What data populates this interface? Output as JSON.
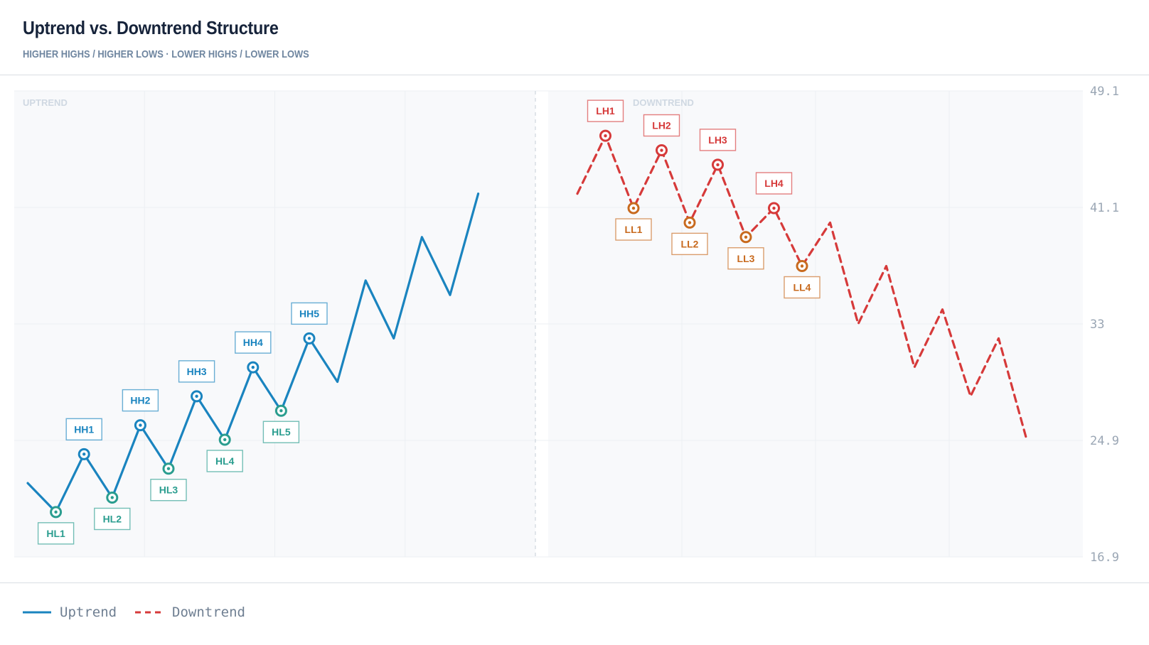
{
  "title": "Uptrend vs. Downtrend Structure",
  "subtitle": "HIGHER HIGHS / HIGHER LOWS · LOWER HIGHS / LOWER LOWS",
  "colors": {
    "uptrend": "#1a84bf",
    "downtrend": "#d63a3a",
    "higher_low": "#2a9d8f",
    "lower_low": "#c86a1e"
  },
  "chart_data": {
    "type": "line",
    "ylim": [
      16.9,
      49.1
    ],
    "y_ticks": [
      "49.1",
      "41.1",
      "33",
      "24.9",
      "16.9"
    ],
    "grid": true,
    "legend_position": "bottom-left",
    "panels": [
      {
        "name": "UPTREND"
      },
      {
        "name": "DOWNTREND"
      }
    ],
    "series": [
      {
        "name": "Uptrend",
        "style": "solid",
        "x": [
          0,
          1,
          2,
          3,
          4,
          5,
          6,
          7,
          8,
          9,
          10,
          11,
          12,
          13,
          14,
          15,
          16
        ],
        "values": [
          22.0,
          20.0,
          24.0,
          21.0,
          26.0,
          23.0,
          28.0,
          25.0,
          30.0,
          27.0,
          32.0,
          29.0,
          36.0,
          32.0,
          39.0,
          35.0,
          42.0
        ],
        "labels": [
          {
            "index": 1,
            "text": "HL1",
            "kind": "low"
          },
          {
            "index": 2,
            "text": "HH1",
            "kind": "high"
          },
          {
            "index": 3,
            "text": "HL2",
            "kind": "low"
          },
          {
            "index": 4,
            "text": "HH2",
            "kind": "high"
          },
          {
            "index": 5,
            "text": "HL3",
            "kind": "low"
          },
          {
            "index": 6,
            "text": "HH3",
            "kind": "high"
          },
          {
            "index": 7,
            "text": "HL4",
            "kind": "low"
          },
          {
            "index": 8,
            "text": "HH4",
            "kind": "high"
          },
          {
            "index": 9,
            "text": "HL5",
            "kind": "low"
          },
          {
            "index": 10,
            "text": "HH5",
            "kind": "high"
          }
        ]
      },
      {
        "name": "Downtrend",
        "style": "dashed",
        "x": [
          0,
          1,
          2,
          3,
          4,
          5,
          6,
          7,
          8,
          9,
          10,
          11,
          12,
          13,
          14,
          15,
          16
        ],
        "values": [
          42.0,
          46.0,
          41.0,
          45.0,
          40.0,
          44.0,
          39.0,
          41.0,
          37.0,
          40.0,
          33.0,
          37.0,
          30.0,
          34.0,
          28.0,
          32.0,
          25.0
        ],
        "labels": [
          {
            "index": 1,
            "text": "LH1",
            "kind": "high"
          },
          {
            "index": 2,
            "text": "LL1",
            "kind": "low"
          },
          {
            "index": 3,
            "text": "LH2",
            "kind": "high"
          },
          {
            "index": 4,
            "text": "LL2",
            "kind": "low"
          },
          {
            "index": 5,
            "text": "LH3",
            "kind": "high"
          },
          {
            "index": 6,
            "text": "LL3",
            "kind": "low"
          },
          {
            "index": 7,
            "text": "LH4",
            "kind": "high"
          },
          {
            "index": 8,
            "text": "LL4",
            "kind": "low"
          }
        ]
      }
    ]
  }
}
